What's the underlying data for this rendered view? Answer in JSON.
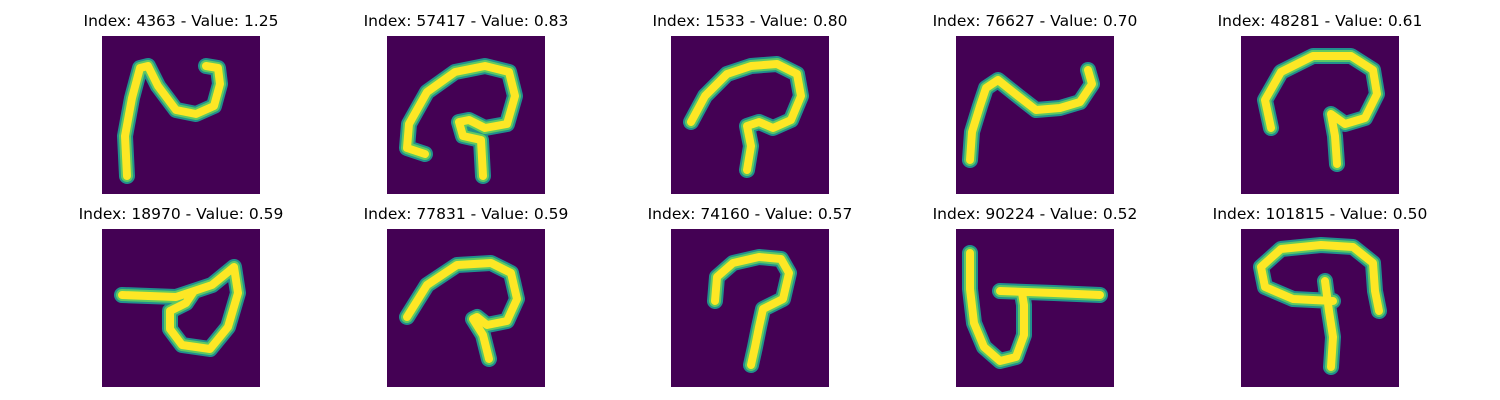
{
  "colors": {
    "background": "#440154",
    "edge_outer": "#21908d",
    "edge_inner": "#5ec962",
    "stroke_core": "#fde725"
  },
  "panels": [
    {
      "title": "Index: 4363 - Value: 1.25"
    },
    {
      "title": "Index: 57417 - Value: 0.83"
    },
    {
      "title": "Index: 1533 - Value: 0.80"
    },
    {
      "title": "Index: 76627 - Value: 0.70"
    },
    {
      "title": "Index: 48281 - Value: 0.61"
    },
    {
      "title": "Index: 18970 - Value: 0.59"
    },
    {
      "title": "Index: 77831 - Value: 0.59"
    },
    {
      "title": "Index: 74160 - Value: 0.57"
    },
    {
      "title": "Index: 90224 - Value: 0.52"
    },
    {
      "title": "Index: 101815 - Value: 0.50"
    }
  ]
}
